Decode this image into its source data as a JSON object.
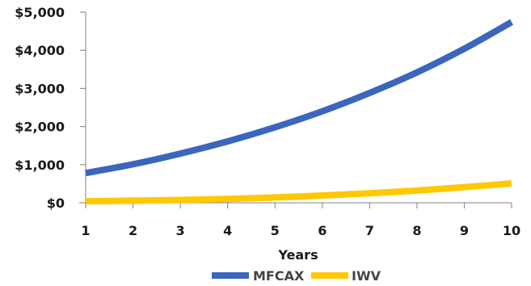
{
  "chart_data": {
    "type": "line",
    "xlabel": "Years",
    "ylabel": "",
    "x": [
      1,
      2,
      3,
      4,
      5,
      6,
      7,
      8,
      9,
      10
    ],
    "xlim": [
      1,
      10
    ],
    "ylim": [
      0,
      5000
    ],
    "y_ticks": [
      0,
      1000,
      2000,
      3000,
      4000,
      5000
    ],
    "y_tick_labels": [
      "$0",
      "$1,000",
      "$2,000",
      "$3,000",
      "$4,000",
      "$5,000"
    ],
    "x_tick_labels": [
      "1",
      "2",
      "3",
      "4",
      "5",
      "6",
      "7",
      "8",
      "9",
      "10"
    ],
    "grid": false,
    "legend": "bottom",
    "series": [
      {
        "name": "MFCAX",
        "color": "#3a66bd",
        "values": [
          780,
          1010,
          1290,
          1610,
          1980,
          2400,
          2880,
          3420,
          4040,
          4740
        ]
      },
      {
        "name": "IWV",
        "color": "#ffc800",
        "values": [
          40,
          55,
          75,
          100,
          140,
          190,
          250,
          320,
          410,
          510
        ]
      }
    ]
  }
}
